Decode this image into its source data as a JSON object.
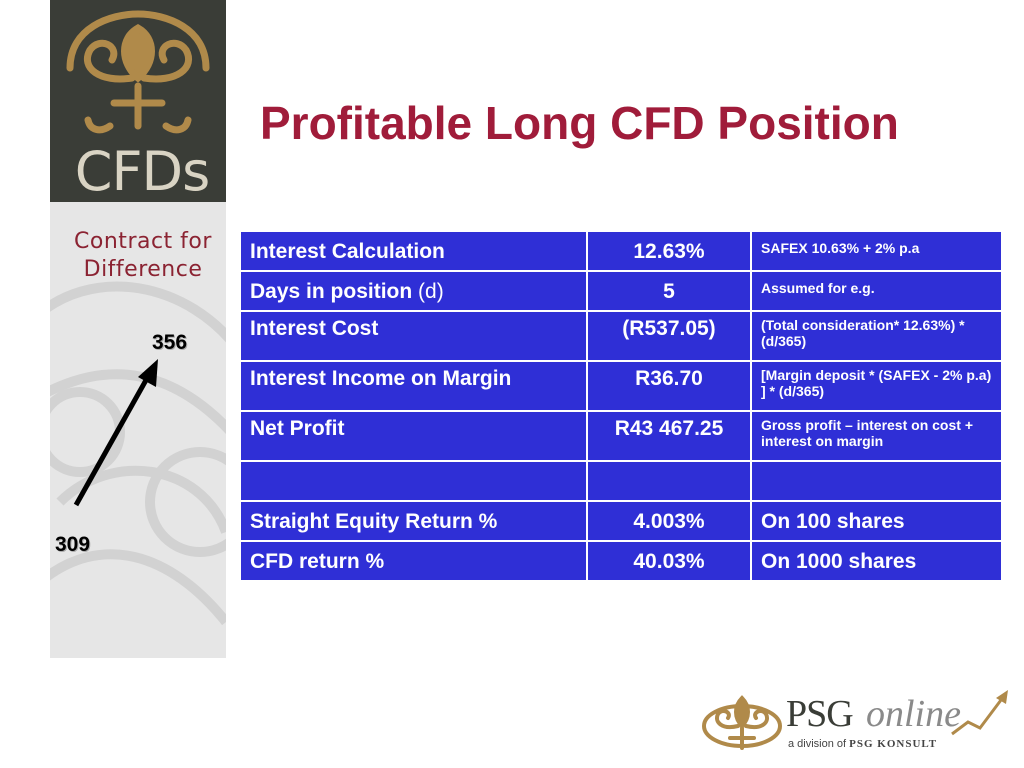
{
  "brand": {
    "name": "CFDs",
    "subtitle_line1": "Contract for",
    "subtitle_line2": "Difference"
  },
  "title": "Profitable Long CFD Position",
  "annotations": {
    "top_value": "356",
    "bottom_value": "309"
  },
  "table": {
    "rows": [
      {
        "label": "Interest Calculation",
        "label_suffix": "",
        "value": "12.63%",
        "note": "SAFEX 10.63% + 2% p.a"
      },
      {
        "label": "Days in position",
        "label_suffix": " (d)",
        "value": "5",
        "note": "Assumed for e.g."
      },
      {
        "label": "Interest Cost",
        "label_suffix": "",
        "value": "(R537.05)",
        "note": "(Total consideration* 12.63%) * (d/365)"
      },
      {
        "label": "Interest Income on Margin",
        "label_suffix": "",
        "value": "R36.70",
        "note": "[Margin deposit * (SAFEX - 2% p.a) ] * (d/365)"
      },
      {
        "label": "Net Profit",
        "label_suffix": "",
        "value": "R43 467.25",
        "note": "Gross profit – interest on cost + interest on margin"
      },
      {
        "label": "",
        "label_suffix": "",
        "value": "",
        "note": ""
      },
      {
        "label": "Straight Equity Return %",
        "label_suffix": "",
        "value": "4.003%",
        "note": "On 100 shares"
      },
      {
        "label": "CFD return %",
        "label_suffix": "",
        "value": "40.03%",
        "note": "On 1000 shares"
      }
    ]
  },
  "footer_logo": {
    "psg": "PSG",
    "online": "online",
    "division_prefix": "a division of",
    "division_name": "PSG KONSULT"
  },
  "colors": {
    "title": "#a01c3a",
    "table_bg": "#2f2fd6",
    "sidebar_dark": "#3a3d37",
    "emblem_gold": "#b08a4a"
  }
}
